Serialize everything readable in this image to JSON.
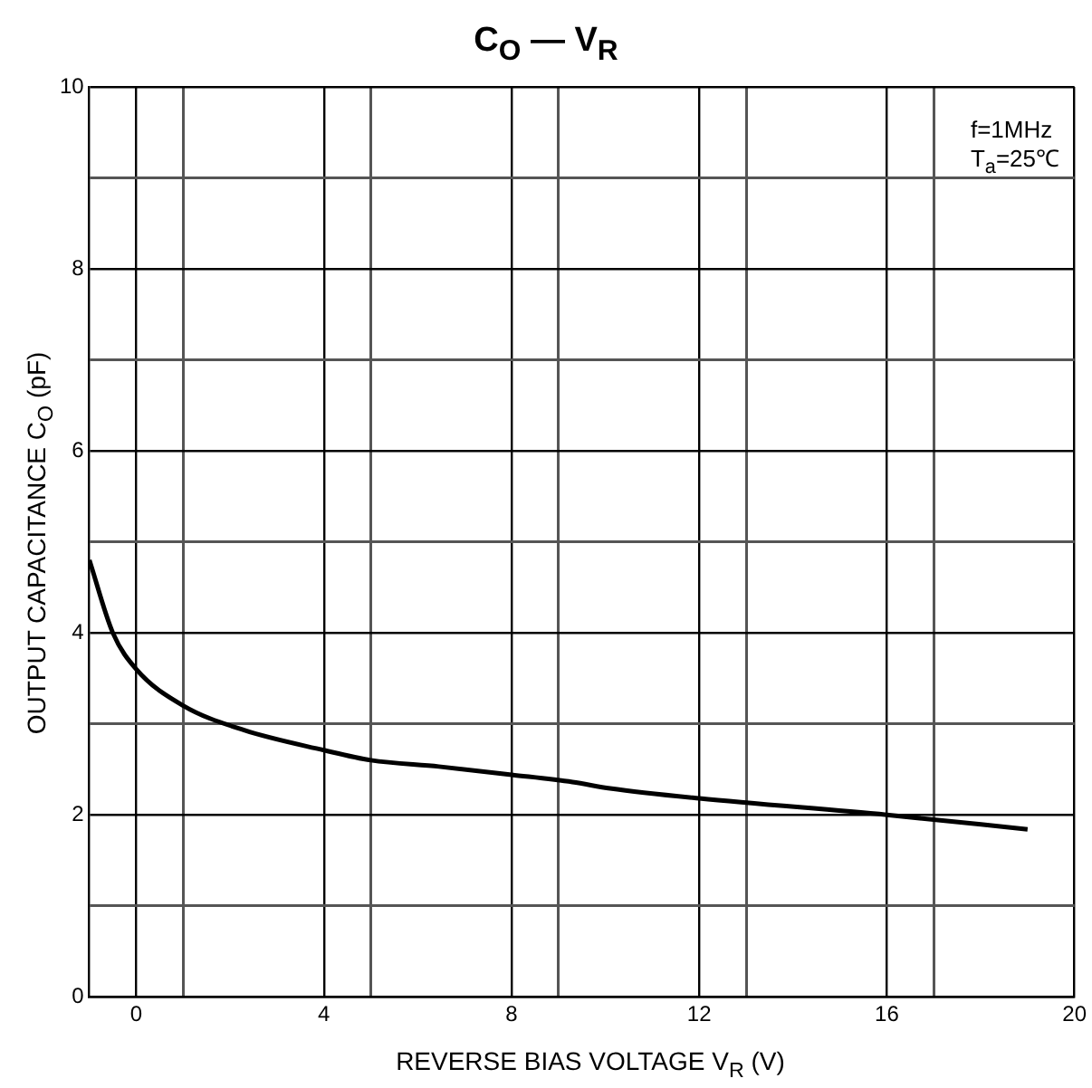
{
  "chart_data": {
    "type": "line",
    "title": "C$_{O}$ — V$_{R}$",
    "xlabel": "REVERSE BIAS VOLTAGE  V$_{R}$  (V)",
    "ylabel": "OUTPUT  CAPACITANCE   C$_{O}$  (pF)",
    "annotations": [
      "f=1MHz",
      "T$_{a}$=25℃"
    ],
    "x": [
      -1,
      -0.5,
      0,
      1,
      2.3,
      4,
      5,
      6.45,
      8,
      9.3,
      10.1,
      12,
      16,
      19
    ],
    "series": [
      {
        "color": "#000000",
        "values": [
          4.8,
          4.0,
          3.6,
          3.2,
          2.93,
          2.71,
          2.6,
          2.53,
          2.44,
          2.36,
          2.29,
          2.18,
          2.0,
          1.84
        ]
      }
    ],
    "xlim": [
      -1,
      20
    ],
    "ylim": [
      0,
      10
    ],
    "xticks": [
      0,
      {
        "value": 1,
        "label": null
      },
      4,
      {
        "value": 5,
        "label": null
      },
      8,
      {
        "value": 9,
        "label": null
      },
      12,
      {
        "value": 13,
        "label": null
      },
      16,
      {
        "value": 17,
        "label": null
      },
      20
    ],
    "yticks": [
      0,
      {
        "value": 1,
        "label": null
      },
      2,
      {
        "value": 3,
        "label": null
      },
      4,
      {
        "value": 5,
        "label": null
      },
      6,
      {
        "value": 7,
        "label": null
      },
      8,
      {
        "value": 9,
        "label": null
      },
      10
    ],
    "grid": true,
    "legend": false,
    "marker": "none",
    "line_style": "solid"
  }
}
